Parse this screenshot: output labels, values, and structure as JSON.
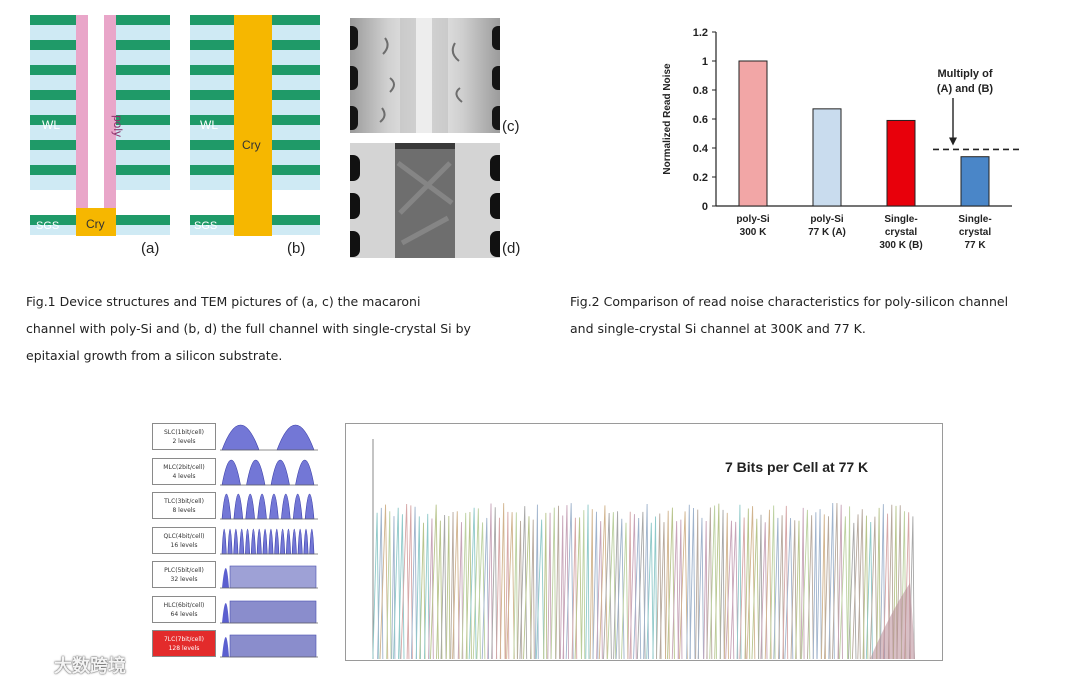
{
  "figure1": {
    "struct_a": {
      "wl": "WL",
      "sgs": "SGS",
      "channel": "poly",
      "cry": "Cry",
      "label": "(a)"
    },
    "struct_b": {
      "wl": "WL",
      "sgs": "SGS",
      "cry": "Cry",
      "label": "(b)"
    },
    "tem_c_label": "(c)",
    "tem_d_label": "(d)",
    "caption": [
      "Fig.1 Device structures and TEM pictures of (a, c) the macaroni",
      "channel with poly-Si and (b, d) the full channel with single-crystal Si by",
      "epitaxial growth from a silicon substrate."
    ]
  },
  "figure2": {
    "annotation": [
      "Multiply of",
      "(A) and (B)"
    ],
    "caption": [
      "Fig.2 Comparison of read noise characteristics for poly-silicon channel",
      "and single-crystal Si channel at 300K and 77 K."
    ]
  },
  "chart_data": [
    {
      "type": "bar",
      "ylabel": "Normalized Read Noise",
      "ylim": [
        0,
        1.2
      ],
      "yticks": [
        "0",
        "0.2",
        "0.4",
        "0.6",
        "0.8",
        "1",
        "1.2"
      ],
      "categories": [
        [
          "poly-Si",
          "300 K"
        ],
        [
          "poly-Si",
          "77 K (A)"
        ],
        [
          "Single-",
          "crystal",
          "300 K (B)"
        ],
        [
          "Single-",
          "crystal",
          "77 K"
        ]
      ],
      "values": [
        1.0,
        0.67,
        0.59,
        0.34
      ],
      "colors": [
        "#f2a6a6",
        "#c9dcee",
        "#e8000b",
        "#4a86c8"
      ],
      "reference_line": 0.39,
      "grid": false
    },
    {
      "type": "line",
      "title": "7 Bits per Cell at 77 K"
    }
  ],
  "figure3": {
    "cells": [
      {
        "name": "SLC(1bit/cell)",
        "levels": "2 levels",
        "peaks": 2,
        "highlight": false
      },
      {
        "name": "MLC(2bit/cell)",
        "levels": "4 levels",
        "peaks": 4,
        "highlight": false
      },
      {
        "name": "TLC(3bit/cell)",
        "levels": "8 levels",
        "peaks": 8,
        "highlight": false
      },
      {
        "name": "QLC(4bit/cell)",
        "levels": "16 levels",
        "peaks": 16,
        "highlight": false
      },
      {
        "name": "PLC(5bit/cell)",
        "levels": "32 levels",
        "peaks": 32,
        "highlight": false
      },
      {
        "name": "HLC(6bit/cell)",
        "levels": "64 levels",
        "peaks": 64,
        "highlight": false
      },
      {
        "name": "7LC(7bit/cell)",
        "levels": "128 levels",
        "peaks": 128,
        "highlight": true
      }
    ]
  },
  "watermark": "大数跨境",
  "colors": {
    "wl_green": "#1f9a68",
    "layer_blue": "#cfeaf4",
    "poly_pink": "#e9a6c9",
    "cry_yellow": "#f6b700",
    "dist_blue": "#5b5fcf",
    "highlight_red": "#e32b2b"
  }
}
